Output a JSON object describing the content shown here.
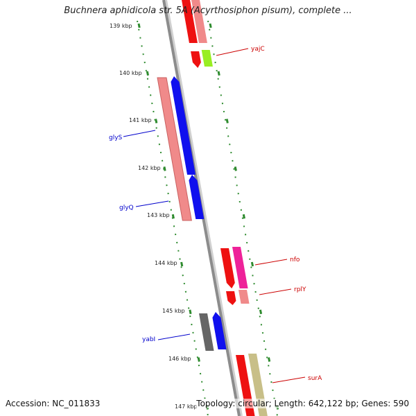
{
  "title": "Buchnera aphidicola str. 5A (Acyrthosiphon pisum), complete ...",
  "footer": {
    "accession": "Accession: NC_011833",
    "summary": "Topology: circular; Length: 642,122 bp; Genes: 590"
  },
  "ticks": [
    "139 kbp",
    "140 kbp",
    "141 kbp",
    "142 kbp",
    "143 kbp",
    "144 kbp",
    "145 kbp",
    "146 kbp",
    "147 kbp"
  ],
  "gene_labels": [
    {
      "name": "yajC",
      "color": "#cc0000",
      "side": "right"
    },
    {
      "name": "glyS",
      "color": "#0000cc",
      "side": "left"
    },
    {
      "name": "glyQ",
      "color": "#0000cc",
      "side": "left"
    },
    {
      "name": "nfo",
      "color": "#cc0000",
      "side": "right"
    },
    {
      "name": "rplY",
      "color": "#cc0000",
      "side": "right"
    },
    {
      "name": "yabI",
      "color": "#0000cc",
      "side": "left"
    },
    {
      "name": "surA",
      "color": "#cc0000",
      "side": "right"
    }
  ],
  "colors": {
    "backbone": "#8c8c8c",
    "ring_dots": "#2e8b2e",
    "red": "#ee1111",
    "pink": "#f08a8a",
    "blue": "#1010ee",
    "magenta": "#ee2299",
    "lime": "#99ee22",
    "gray": "#666666",
    "khaki": "#c8bf88"
  }
}
